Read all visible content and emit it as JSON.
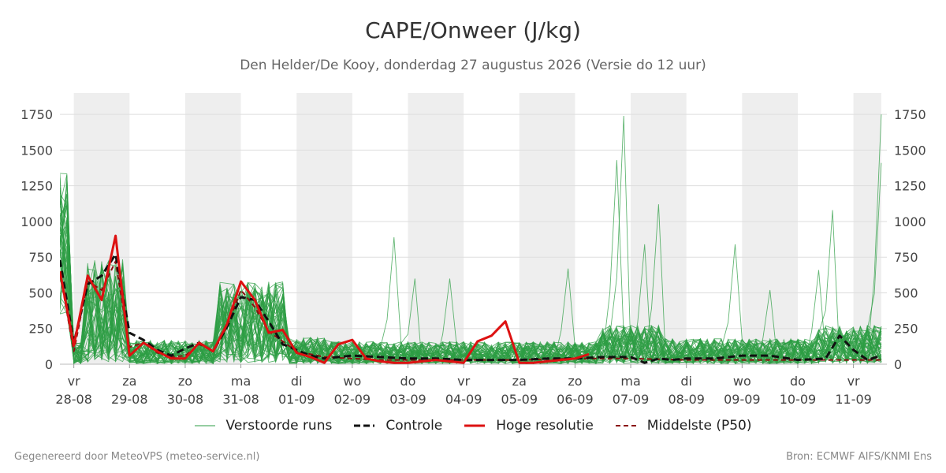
{
  "header": {
    "title": "CAPE/Onweer (J/kg)",
    "subtitle": "Den Helder/De Kooy, donderdag 27 augustus 2026 (Versie do 12 uur)"
  },
  "footer": {
    "left": "Gegenereerd door MeteoVPS (meteo-service.nl)",
    "right": "Bron: ECMWF AIFS/KNMI Ens"
  },
  "legend": {
    "perturbed": "Verstoorde runs",
    "control": "Controle",
    "hires": "Hoge resolutie",
    "median": "Middelste (P50)"
  },
  "colors": {
    "perturbed": "#2e9e44",
    "control": "#111111",
    "hires": "#dd1111",
    "median": "#8b1010",
    "weekend_band": "#eeeeee",
    "grid": "#dddddd"
  },
  "chart_data": {
    "type": "line",
    "x_unit": "days since 2026-08-28 00:00",
    "xlim": [
      -0.25,
      14.6
    ],
    "ylim": [
      0,
      1900
    ],
    "y_ticks": [
      0,
      250,
      500,
      750,
      1000,
      1250,
      1500,
      1750
    ],
    "x_ticks": [
      {
        "x": 0,
        "day": "vr",
        "date": "28-08"
      },
      {
        "x": 1,
        "day": "za",
        "date": "29-08"
      },
      {
        "x": 2,
        "day": "zo",
        "date": "30-08"
      },
      {
        "x": 3,
        "day": "ma",
        "date": "31-08"
      },
      {
        "x": 4,
        "day": "di",
        "date": "01-09"
      },
      {
        "x": 5,
        "day": "wo",
        "date": "02-09"
      },
      {
        "x": 6,
        "day": "do",
        "date": "03-09"
      },
      {
        "x": 7,
        "day": "vr",
        "date": "04-09"
      },
      {
        "x": 8,
        "day": "za",
        "date": "05-09"
      },
      {
        "x": 9,
        "day": "zo",
        "date": "06-09"
      },
      {
        "x": 10,
        "day": "ma",
        "date": "07-09"
      },
      {
        "x": 11,
        "day": "di",
        "date": "08-09"
      },
      {
        "x": 12,
        "day": "wo",
        "date": "09-09"
      },
      {
        "x": 13,
        "day": "do",
        "date": "10-09"
      },
      {
        "x": 14,
        "day": "vr",
        "date": "11-09"
      }
    ],
    "shaded_bands": [
      [
        0,
        1
      ],
      [
        2,
        3
      ],
      [
        4,
        5
      ],
      [
        6,
        7
      ],
      [
        8,
        9
      ],
      [
        10,
        11
      ],
      [
        12,
        13
      ],
      [
        14,
        14.5
      ]
    ],
    "series": [
      {
        "name": "Hoge resolutie",
        "style": "hires",
        "x": [
          -0.25,
          0,
          0.25,
          0.5,
          0.75,
          1,
          1.25,
          1.5,
          1.75,
          2,
          2.25,
          2.5,
          2.75,
          3,
          3.25,
          3.5,
          3.75,
          4,
          4.25,
          4.5,
          4.75,
          5,
          5.25,
          5.5,
          5.75,
          6,
          6.25,
          6.5,
          6.75,
          7,
          7.25,
          7.5,
          7.75,
          8,
          8.25,
          8.5,
          8.75,
          9,
          9.25
        ],
        "values": [
          650,
          130,
          620,
          450,
          900,
          60,
          150,
          90,
          40,
          40,
          150,
          90,
          280,
          580,
          450,
          220,
          240,
          80,
          50,
          10,
          140,
          170,
          40,
          20,
          10,
          10,
          20,
          30,
          20,
          10,
          160,
          200,
          300,
          10,
          10,
          20,
          30,
          40,
          70
        ]
      },
      {
        "name": "Controle",
        "style": "control",
        "x": [
          -0.25,
          0,
          0.25,
          0.5,
          0.75,
          1,
          1.25,
          1.5,
          1.75,
          2,
          2.25,
          2.5,
          2.75,
          3,
          3.25,
          3.5,
          3.75,
          4,
          4.25,
          4.5,
          4.75,
          5,
          5.5,
          6,
          6.5,
          7,
          7.5,
          8,
          8.5,
          9,
          9.5,
          10,
          10.25,
          10.5,
          10.75,
          11,
          11.5,
          12,
          12.5,
          13,
          13.5,
          13.75,
          14,
          14.25,
          14.5
        ],
        "values": [
          730,
          150,
          560,
          620,
          770,
          220,
          170,
          100,
          60,
          110,
          150,
          90,
          260,
          470,
          450,
          300,
          140,
          100,
          60,
          40,
          50,
          60,
          50,
          40,
          40,
          30,
          30,
          30,
          40,
          40,
          50,
          50,
          10,
          40,
          30,
          40,
          40,
          60,
          60,
          30,
          40,
          200,
          100,
          30,
          60
        ]
      },
      {
        "name": "Middelste (P50)",
        "style": "median",
        "x": [
          -0.25,
          0,
          0.25,
          0.5,
          0.75,
          1,
          1.25,
          1.5,
          1.75,
          2,
          2.25,
          2.5,
          2.75,
          3,
          3.25,
          3.5,
          3.75,
          4,
          4.5,
          5,
          5.5,
          6,
          7,
          8,
          9,
          10,
          11,
          12,
          13,
          14,
          14.5
        ],
        "values": [
          640,
          90,
          580,
          520,
          720,
          120,
          150,
          80,
          50,
          60,
          140,
          90,
          260,
          520,
          400,
          230,
          160,
          90,
          50,
          40,
          30,
          30,
          30,
          30,
          40,
          40,
          30,
          30,
          30,
          30,
          30
        ]
      }
    ],
    "perturbed_runs_count": 50,
    "perturbed_runs_note": "Verstoorde runs: 50 ensemble members, values mostly 0-1000 J/kg, peaks to ~1740 J/kg near 07-09 and at end of period"
  }
}
